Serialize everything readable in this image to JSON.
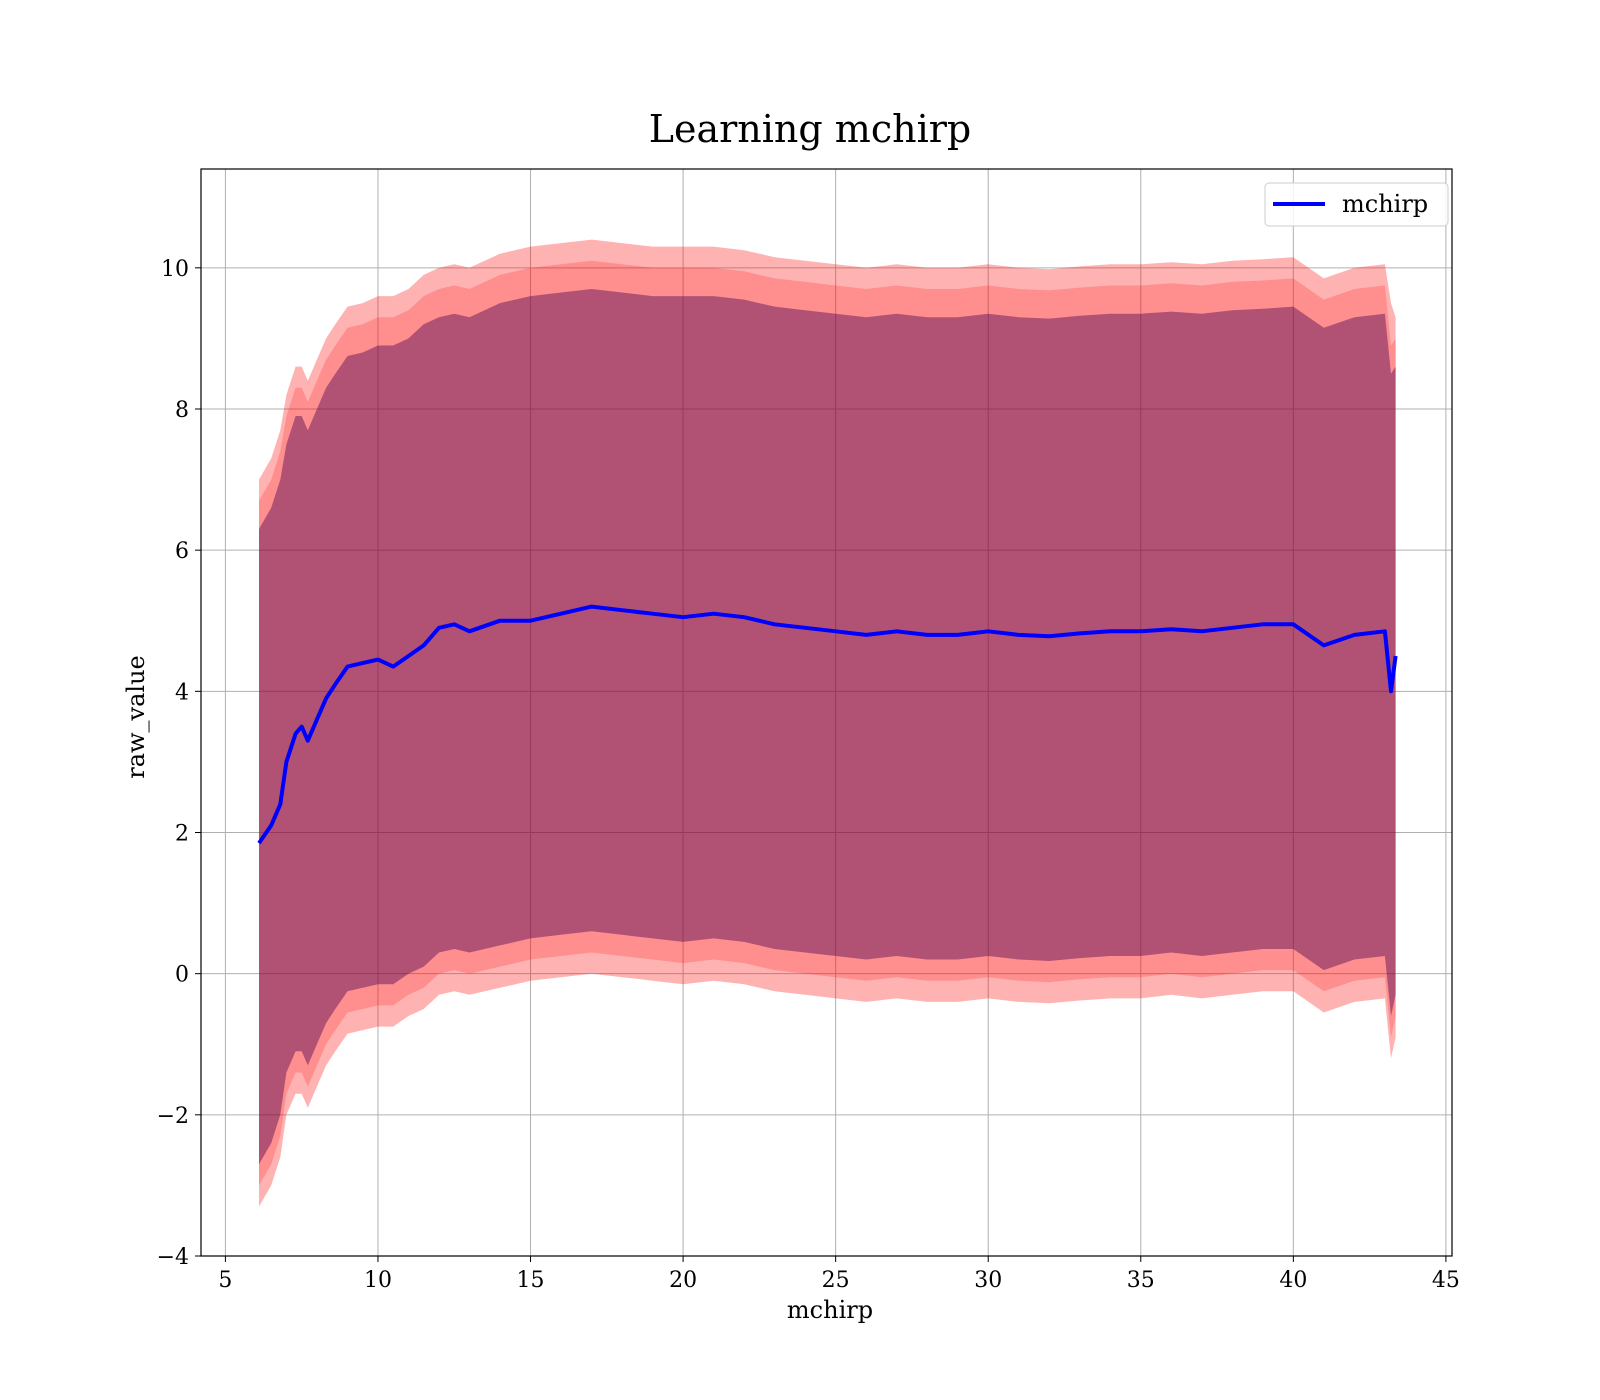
{
  "chart_data": {
    "type": "line",
    "title": "Learning mchirp",
    "xlabel": "mchirp",
    "ylabel": "raw_value",
    "xlim": [
      4.2,
      45.2
    ],
    "ylim": [
      -4.0,
      11.4
    ],
    "xticks": [
      5,
      10,
      15,
      20,
      25,
      30,
      35,
      40,
      45
    ],
    "xtick_labels": [
      "5",
      "10",
      "15",
      "20",
      "25",
      "30",
      "35",
      "40",
      "45"
    ],
    "yticks": [
      -4,
      -2,
      0,
      2,
      4,
      6,
      8,
      10
    ],
    "ytick_labels": [
      "−4",
      "−2",
      "0",
      "2",
      "4",
      "6",
      "8",
      "10"
    ],
    "grid": true,
    "legend": {
      "position": "top-right",
      "entries": [
        "mchirp"
      ]
    },
    "colors": {
      "line": "#0000ff",
      "band_outer": "#ff0000",
      "band_middle": "#ff0000",
      "band_inner": "#440154"
    },
    "series": [
      {
        "name": "mchirp",
        "x": [
          6.1,
          6.5,
          6.8,
          7.0,
          7.3,
          7.5,
          7.7,
          8.0,
          8.3,
          8.6,
          9.0,
          9.5,
          10.0,
          10.5,
          11.0,
          11.5,
          12.0,
          12.5,
          13.0,
          14.0,
          15.0,
          16.0,
          17.0,
          18.0,
          19.0,
          20.0,
          21.0,
          22.0,
          23.0,
          24.0,
          25.0,
          26.0,
          27.0,
          28.0,
          29.0,
          30.0,
          31.0,
          32.0,
          33.0,
          34.0,
          35.0,
          36.0,
          37.0,
          38.0,
          39.0,
          40.0,
          41.0,
          42.0,
          43.0,
          43.2,
          43.35
        ],
        "mean": [
          1.85,
          2.1,
          2.4,
          3.0,
          3.4,
          3.5,
          3.3,
          3.6,
          3.9,
          4.1,
          4.35,
          4.4,
          4.45,
          4.35,
          4.5,
          4.65,
          4.9,
          4.95,
          4.85,
          5.0,
          5.0,
          5.1,
          5.2,
          5.15,
          5.1,
          5.05,
          5.1,
          5.05,
          4.95,
          4.9,
          4.85,
          4.8,
          4.85,
          4.8,
          4.8,
          4.85,
          4.8,
          4.78,
          4.82,
          4.85,
          4.85,
          4.88,
          4.85,
          4.9,
          4.95,
          4.95,
          4.65,
          4.8,
          4.85,
          4.0,
          4.5
        ],
        "inner_band": [
          [
            -2.7,
            6.3
          ],
          [
            -2.4,
            6.6
          ],
          [
            -2.0,
            7.0
          ],
          [
            -1.4,
            7.5
          ],
          [
            -1.1,
            7.9
          ],
          [
            -1.1,
            7.9
          ],
          [
            -1.3,
            7.7
          ],
          [
            -1.0,
            8.0
          ],
          [
            -0.7,
            8.3
          ],
          [
            -0.5,
            8.5
          ],
          [
            -0.25,
            8.75
          ],
          [
            -0.2,
            8.8
          ],
          [
            -0.15,
            8.9
          ],
          [
            -0.15,
            8.9
          ],
          [
            0.0,
            9.0
          ],
          [
            0.1,
            9.2
          ],
          [
            0.3,
            9.3
          ],
          [
            0.35,
            9.35
          ],
          [
            0.3,
            9.3
          ],
          [
            0.4,
            9.5
          ],
          [
            0.5,
            9.6
          ],
          [
            0.55,
            9.65
          ],
          [
            0.6,
            9.7
          ],
          [
            0.55,
            9.65
          ],
          [
            0.5,
            9.6
          ],
          [
            0.45,
            9.6
          ],
          [
            0.5,
            9.6
          ],
          [
            0.45,
            9.55
          ],
          [
            0.35,
            9.45
          ],
          [
            0.3,
            9.4
          ],
          [
            0.25,
            9.35
          ],
          [
            0.2,
            9.3
          ],
          [
            0.25,
            9.35
          ],
          [
            0.2,
            9.3
          ],
          [
            0.2,
            9.3
          ],
          [
            0.25,
            9.35
          ],
          [
            0.2,
            9.3
          ],
          [
            0.18,
            9.28
          ],
          [
            0.22,
            9.32
          ],
          [
            0.25,
            9.35
          ],
          [
            0.25,
            9.35
          ],
          [
            0.3,
            9.38
          ],
          [
            0.25,
            9.35
          ],
          [
            0.3,
            9.4
          ],
          [
            0.35,
            9.42
          ],
          [
            0.35,
            9.45
          ],
          [
            0.05,
            9.15
          ],
          [
            0.2,
            9.3
          ],
          [
            0.25,
            9.35
          ],
          [
            -0.6,
            8.5
          ],
          [
            -0.3,
            8.6
          ]
        ],
        "middle_band": [
          [
            -3.0,
            6.7
          ],
          [
            -2.7,
            7.0
          ],
          [
            -2.3,
            7.4
          ],
          [
            -1.7,
            7.9
          ],
          [
            -1.4,
            8.3
          ],
          [
            -1.4,
            8.3
          ],
          [
            -1.6,
            8.1
          ],
          [
            -1.3,
            8.4
          ],
          [
            -1.0,
            8.7
          ],
          [
            -0.8,
            8.9
          ],
          [
            -0.55,
            9.15
          ],
          [
            -0.5,
            9.2
          ],
          [
            -0.45,
            9.3
          ],
          [
            -0.45,
            9.3
          ],
          [
            -0.3,
            9.4
          ],
          [
            -0.2,
            9.6
          ],
          [
            0.0,
            9.7
          ],
          [
            0.05,
            9.75
          ],
          [
            0.0,
            9.7
          ],
          [
            0.1,
            9.9
          ],
          [
            0.2,
            10.0
          ],
          [
            0.25,
            10.05
          ],
          [
            0.3,
            10.1
          ],
          [
            0.25,
            10.05
          ],
          [
            0.2,
            10.0
          ],
          [
            0.15,
            10.0
          ],
          [
            0.2,
            10.0
          ],
          [
            0.15,
            9.95
          ],
          [
            0.05,
            9.85
          ],
          [
            0.0,
            9.8
          ],
          [
            -0.05,
            9.75
          ],
          [
            -0.1,
            9.7
          ],
          [
            -0.05,
            9.75
          ],
          [
            -0.1,
            9.7
          ],
          [
            -0.1,
            9.7
          ],
          [
            -0.05,
            9.75
          ],
          [
            -0.1,
            9.7
          ],
          [
            -0.12,
            9.68
          ],
          [
            -0.08,
            9.72
          ],
          [
            -0.05,
            9.75
          ],
          [
            -0.05,
            9.75
          ],
          [
            0.0,
            9.78
          ],
          [
            -0.05,
            9.75
          ],
          [
            0.0,
            9.8
          ],
          [
            0.05,
            9.82
          ],
          [
            0.05,
            9.85
          ],
          [
            -0.25,
            9.55
          ],
          [
            -0.1,
            9.7
          ],
          [
            -0.05,
            9.75
          ],
          [
            -0.9,
            8.9
          ],
          [
            -0.6,
            9.0
          ]
        ],
        "outer_band": [
          [
            -3.3,
            7.0
          ],
          [
            -3.0,
            7.3
          ],
          [
            -2.6,
            7.7
          ],
          [
            -2.0,
            8.2
          ],
          [
            -1.7,
            8.6
          ],
          [
            -1.7,
            8.6
          ],
          [
            -1.9,
            8.4
          ],
          [
            -1.6,
            8.7
          ],
          [
            -1.3,
            9.0
          ],
          [
            -1.1,
            9.2
          ],
          [
            -0.85,
            9.45
          ],
          [
            -0.8,
            9.5
          ],
          [
            -0.75,
            9.6
          ],
          [
            -0.75,
            9.6
          ],
          [
            -0.6,
            9.7
          ],
          [
            -0.5,
            9.9
          ],
          [
            -0.3,
            10.0
          ],
          [
            -0.25,
            10.05
          ],
          [
            -0.3,
            10.0
          ],
          [
            -0.2,
            10.2
          ],
          [
            -0.1,
            10.3
          ],
          [
            -0.05,
            10.35
          ],
          [
            0.0,
            10.4
          ],
          [
            -0.05,
            10.35
          ],
          [
            -0.1,
            10.3
          ],
          [
            -0.15,
            10.3
          ],
          [
            -0.1,
            10.3
          ],
          [
            -0.15,
            10.25
          ],
          [
            -0.25,
            10.15
          ],
          [
            -0.3,
            10.1
          ],
          [
            -0.35,
            10.05
          ],
          [
            -0.4,
            10.0
          ],
          [
            -0.35,
            10.05
          ],
          [
            -0.4,
            10.0
          ],
          [
            -0.4,
            10.0
          ],
          [
            -0.35,
            10.05
          ],
          [
            -0.4,
            10.0
          ],
          [
            -0.42,
            9.98
          ],
          [
            -0.38,
            10.02
          ],
          [
            -0.35,
            10.05
          ],
          [
            -0.35,
            10.05
          ],
          [
            -0.3,
            10.08
          ],
          [
            -0.35,
            10.05
          ],
          [
            -0.3,
            10.1
          ],
          [
            -0.25,
            10.12
          ],
          [
            -0.25,
            10.15
          ],
          [
            -0.55,
            9.85
          ],
          [
            -0.4,
            10.0
          ],
          [
            -0.35,
            10.05
          ],
          [
            -1.2,
            9.5
          ],
          [
            -0.9,
            9.3
          ]
        ]
      }
    ]
  }
}
